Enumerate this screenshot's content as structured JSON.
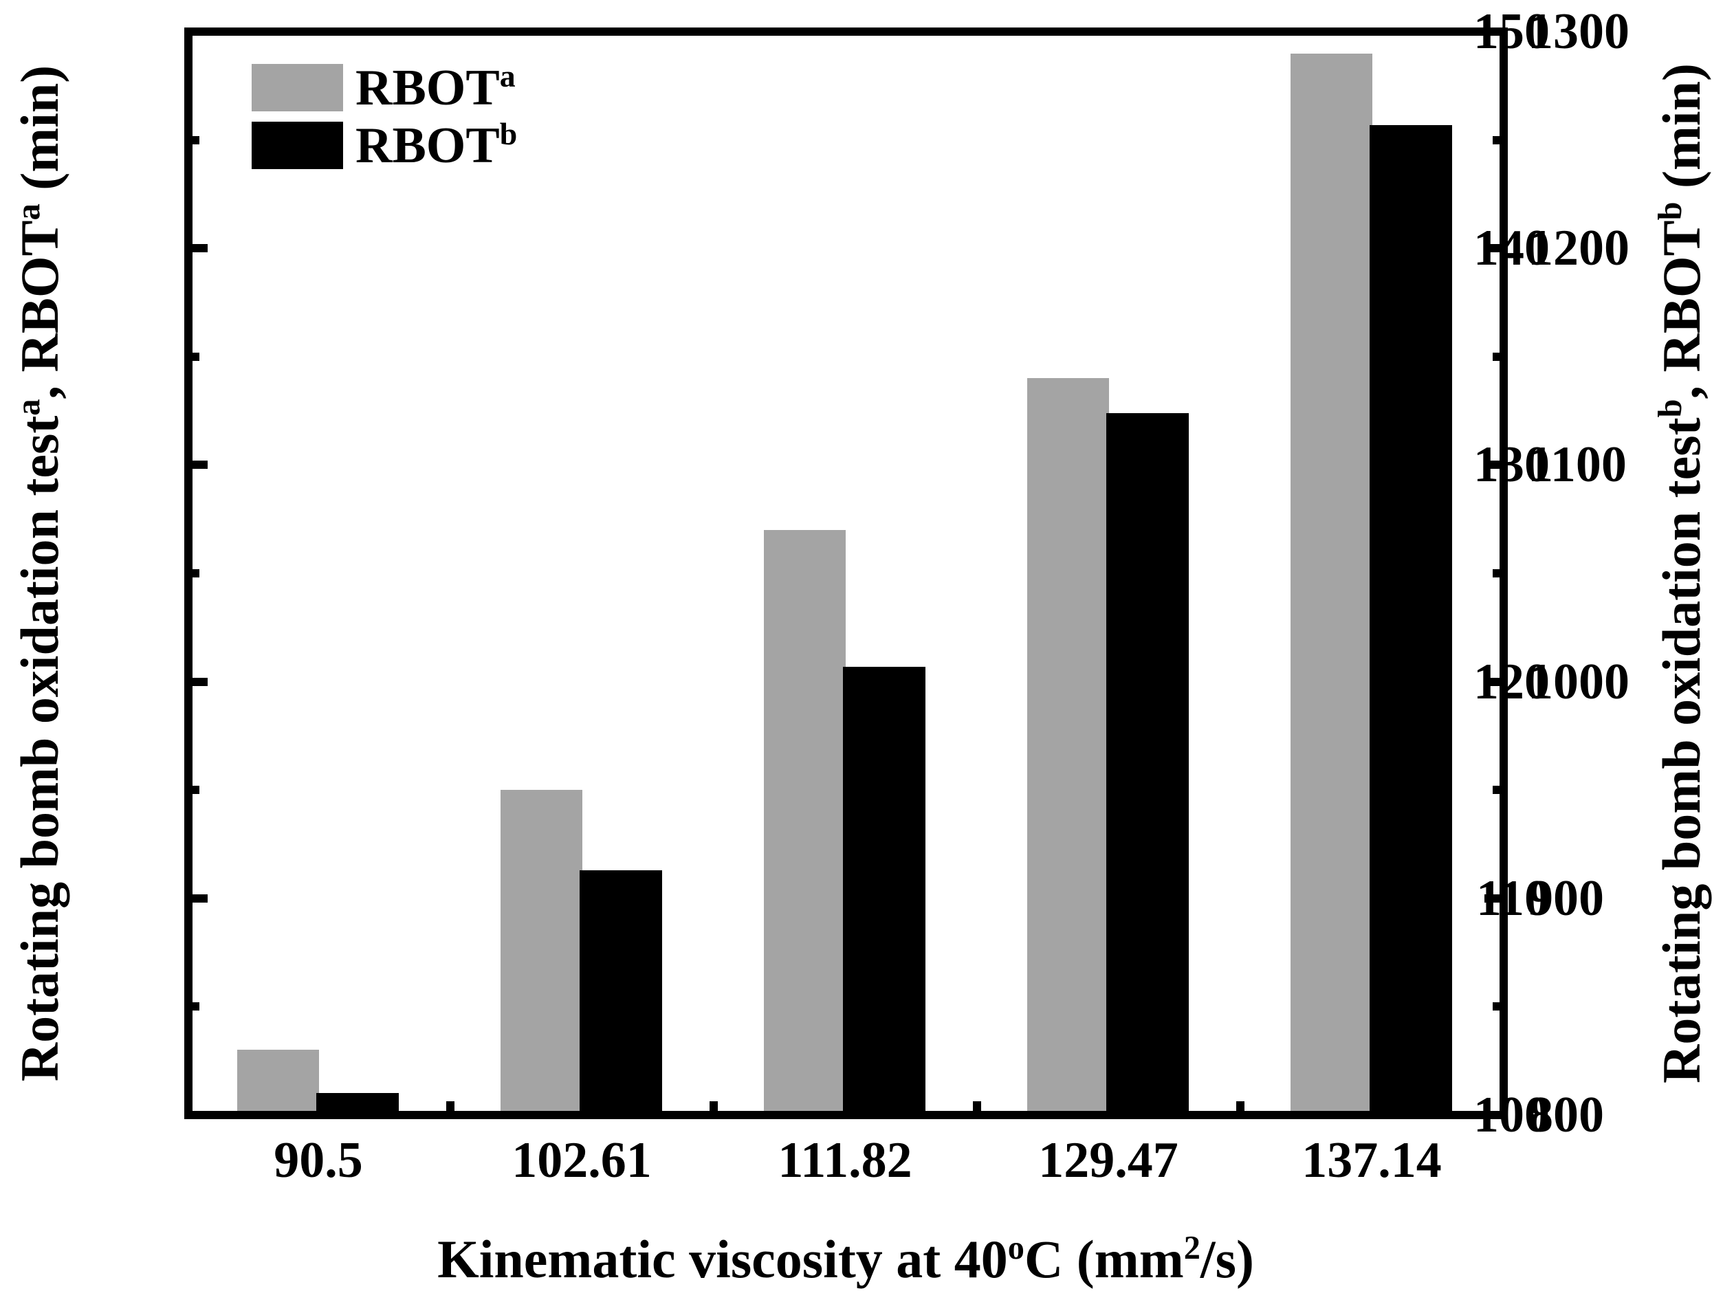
{
  "chart_data": {
    "type": "bar",
    "title": "",
    "grid": false,
    "legend_position": "top-left-inside",
    "background": "#ffffff",
    "categories": [
      "90.5",
      "102.61",
      "111.82",
      "129.47",
      "137.14"
    ],
    "series": [
      {
        "name": "RBOTa",
        "legend_base": "RBOT",
        "legend_sup": "a",
        "axis": "left",
        "color": "#a4a4a4",
        "values": [
          103,
          115,
          127,
          134,
          149
        ]
      },
      {
        "name": "RBOTb",
        "legend_base": "RBOT",
        "legend_sup": "b",
        "axis": "right",
        "color": "#000000",
        "values": [
          810,
          913,
          1007,
          1124,
          1257
        ]
      }
    ],
    "x_axis": {
      "label": "Kinematic viscosity at 40°C (mm²/s)",
      "label_parts": [
        {
          "t": "Kinematic viscosity at 40"
        },
        {
          "t": "o",
          "sup": true
        },
        {
          "t": "C (mm"
        },
        {
          "t": "2",
          "sup": true
        },
        {
          "t": "/s)"
        }
      ]
    },
    "left_axis": {
      "label": "Rotating bomb oxidation testa, RBOTa (min)",
      "label_parts": [
        {
          "t": "Rotating bomb oxidation test"
        },
        {
          "t": "a",
          "sup": true
        },
        {
          "t": ", RBOT"
        },
        {
          "t": "a",
          "sup": true
        },
        {
          "t": " (min)"
        }
      ],
      "min": 100,
      "max": 150,
      "major_ticks": [
        100,
        110,
        120,
        130,
        140,
        150
      ],
      "major_tick_labels": [
        "100",
        "110",
        "120",
        "130",
        "140",
        "150"
      ],
      "minor_ticks": [
        105,
        115,
        125,
        135,
        145
      ]
    },
    "right_axis": {
      "label": "Rotating bomb oxidation testb, RBOTb (min)",
      "label_parts": [
        {
          "t": "Rotating bomb oxidation test"
        },
        {
          "t": "b",
          "sup": true
        },
        {
          "t": ", RBOT"
        },
        {
          "t": "b",
          "sup": true
        },
        {
          "t": " (min)"
        }
      ],
      "min": 800,
      "max": 1300,
      "major_ticks": [
        800,
        900,
        1000,
        1100,
        1200,
        1300
      ],
      "major_tick_labels": [
        "800",
        "900",
        "1000",
        "1100",
        "1200",
        "1300"
      ],
      "minor_ticks": [
        850,
        950,
        1050,
        1150,
        1250
      ]
    }
  }
}
